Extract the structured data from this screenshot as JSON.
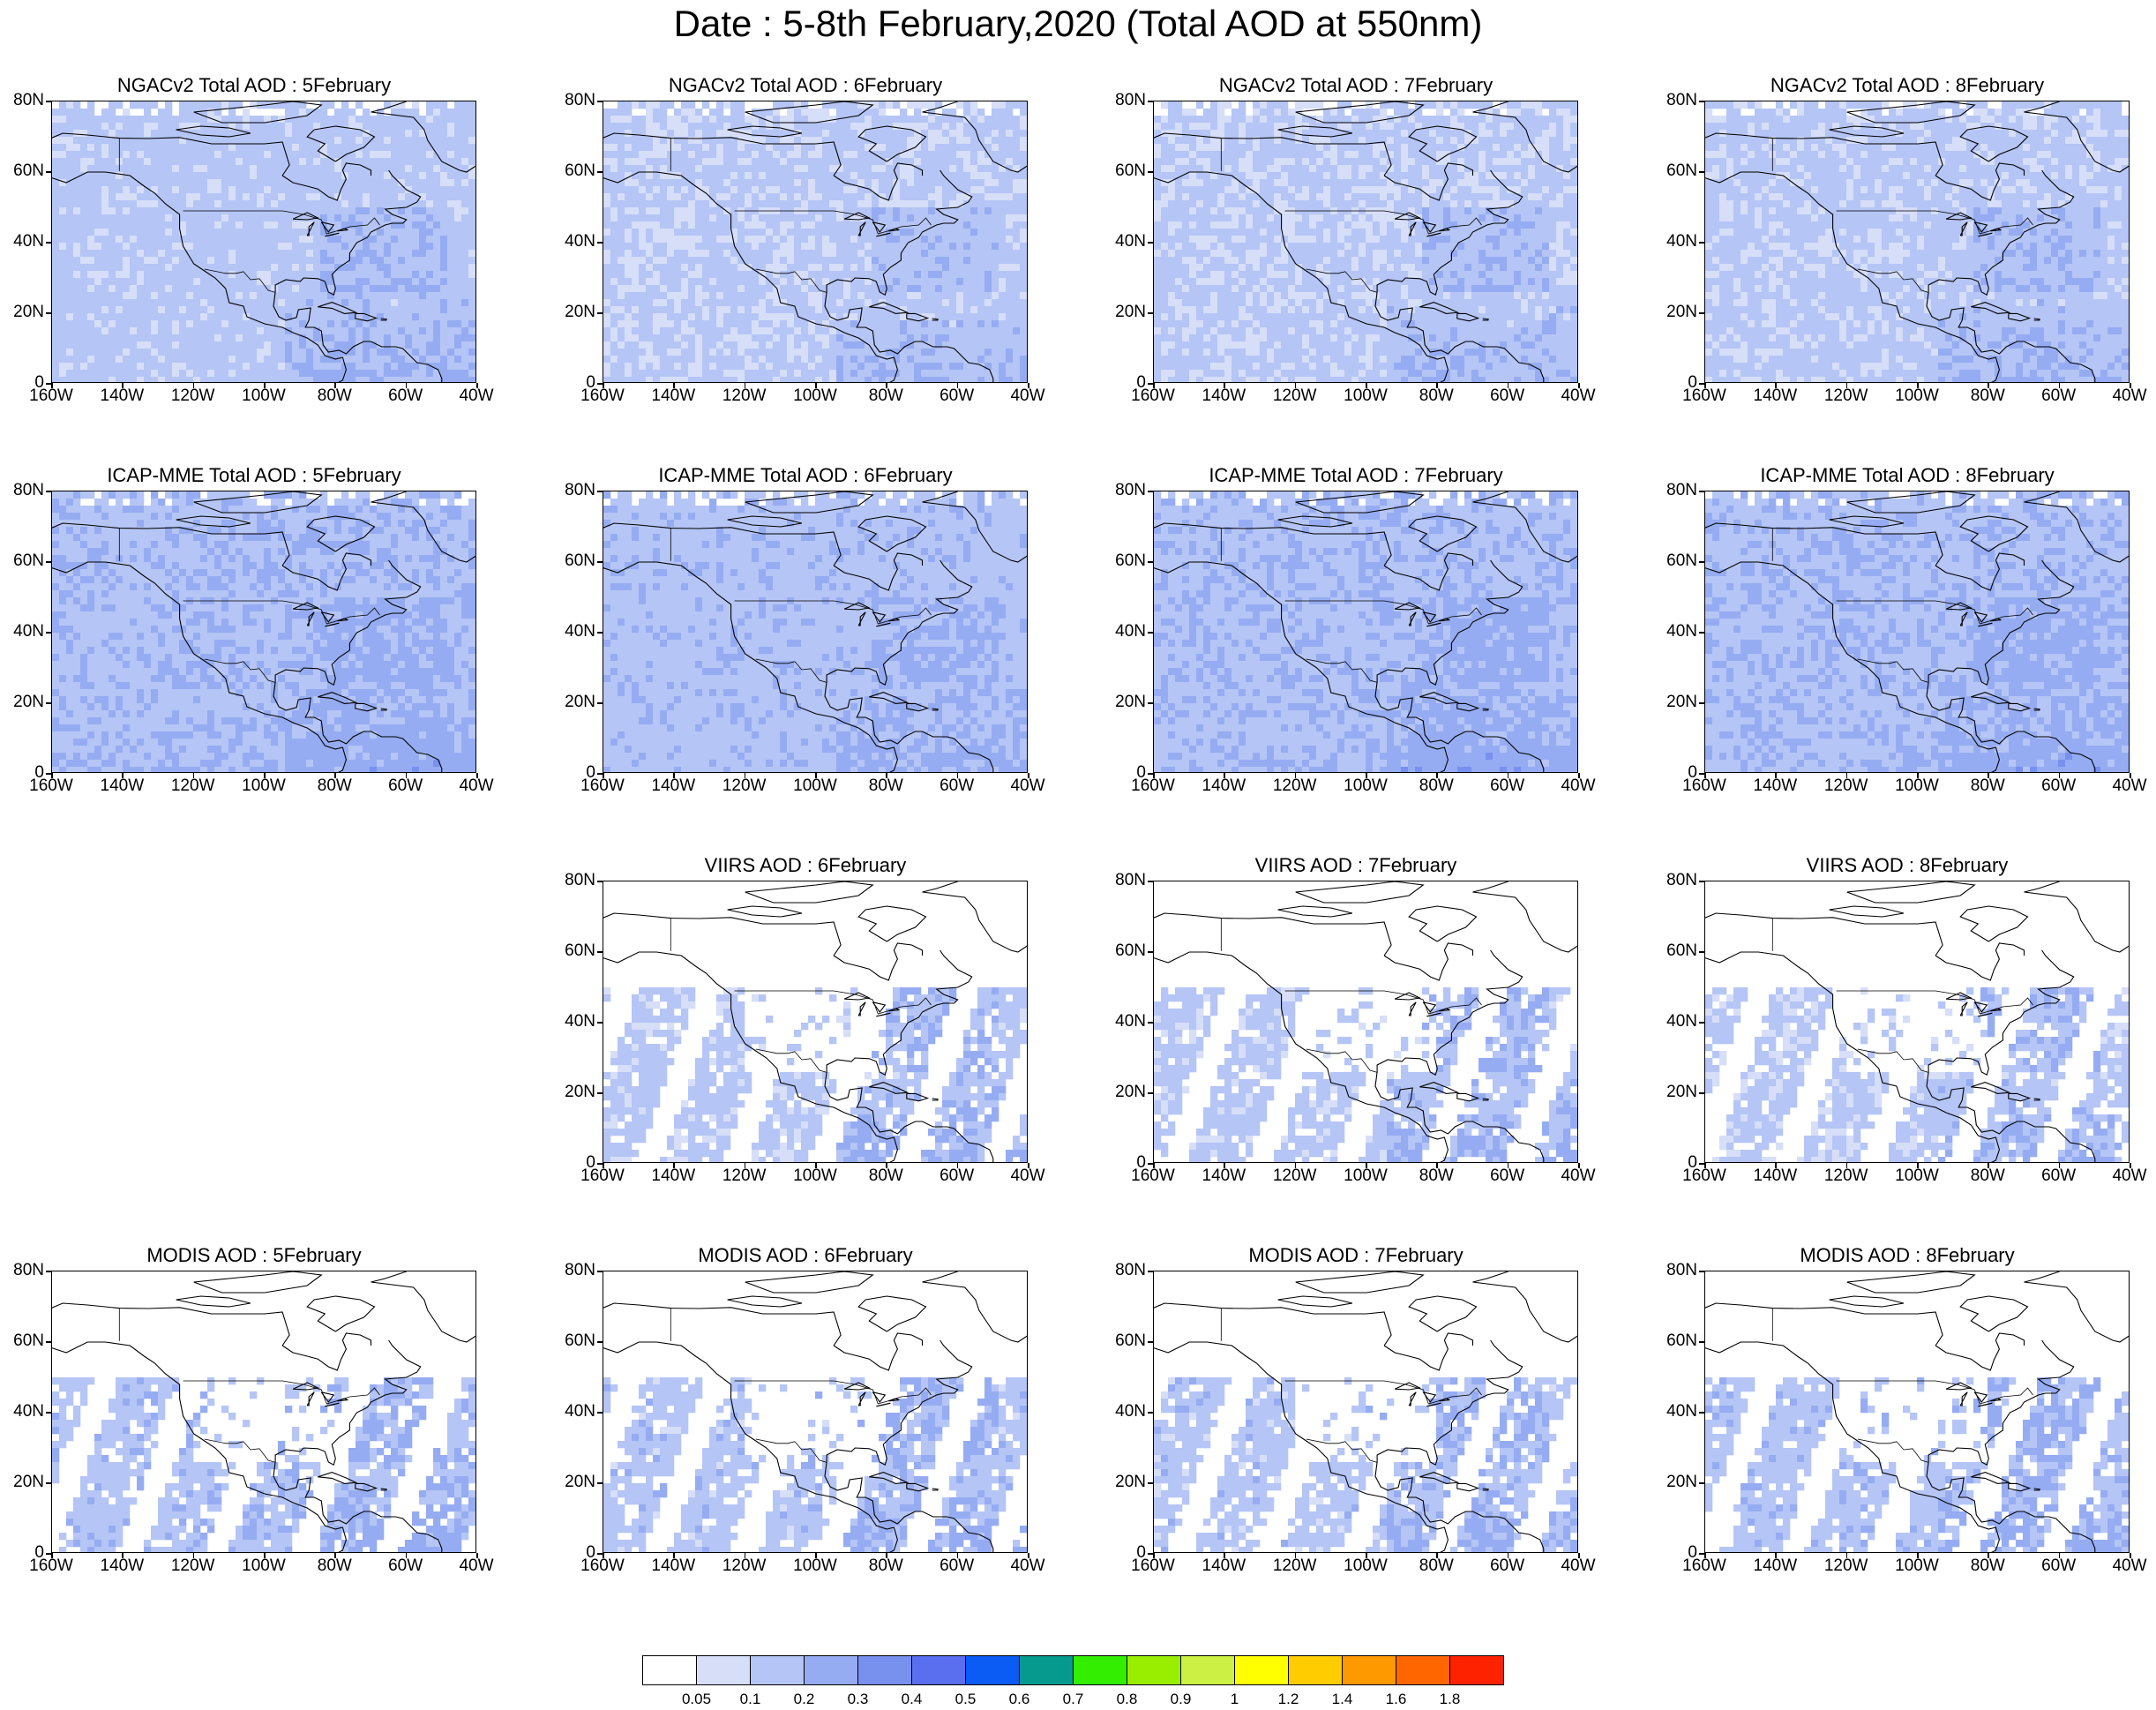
{
  "title": "Date : 5-8th February,2020 (Total AOD at 550nm)",
  "y_ticks": [
    "80N",
    "60N",
    "40N",
    "20N",
    "0"
  ],
  "x_ticks": [
    "160W",
    "140W",
    "120W",
    "100W",
    "80W",
    "60W",
    "40W"
  ],
  "rows": [
    {
      "product": "NGACv2 Total AOD",
      "panels": [
        {
          "title": "NGACv2 Total AOD : 5February",
          "kind": "model",
          "level": 0.14
        },
        {
          "title": "NGACv2 Total AOD : 6February",
          "kind": "model",
          "level": 0.12
        },
        {
          "title": "NGACv2 Total AOD : 7February",
          "kind": "model",
          "level": 0.12
        },
        {
          "title": "NGACv2 Total AOD : 8February",
          "kind": "model",
          "level": 0.13
        }
      ]
    },
    {
      "product": "ICAP-MME Total AOD",
      "panels": [
        {
          "title": "ICAP-MME Total AOD : 5February",
          "kind": "model",
          "level": 0.18
        },
        {
          "title": "ICAP-MME Total AOD : 6February",
          "kind": "model",
          "level": 0.16
        },
        {
          "title": "ICAP-MME Total AOD : 7February",
          "kind": "model",
          "level": 0.18
        },
        {
          "title": "ICAP-MME Total AOD : 8February",
          "kind": "model",
          "level": 0.18
        }
      ]
    },
    {
      "product": "VIIRS AOD",
      "panels": [
        null,
        {
          "title": "VIIRS AOD : 6February",
          "kind": "satellite",
          "level": 0.14
        },
        {
          "title": "VIIRS AOD : 7February",
          "kind": "satellite",
          "level": 0.14
        },
        {
          "title": "VIIRS AOD : 8February",
          "kind": "satellite",
          "level": 0.13
        }
      ]
    },
    {
      "product": "MODIS AOD",
      "panels": [
        {
          "title": "MODIS AOD : 5February",
          "kind": "satellite",
          "level": 0.16
        },
        {
          "title": "MODIS AOD : 6February",
          "kind": "satellite",
          "level": 0.15
        },
        {
          "title": "MODIS AOD : 7February",
          "kind": "satellite",
          "level": 0.15
        },
        {
          "title": "MODIS AOD : 8February",
          "kind": "satellite",
          "level": 0.16
        }
      ]
    }
  ],
  "colorbar": {
    "levels": [
      "0.05",
      "0.1",
      "0.2",
      "0.3",
      "0.4",
      "0.5",
      "0.6",
      "0.7",
      "0.8",
      "0.9",
      "1",
      "1.2",
      "1.4",
      "1.6",
      "1.8"
    ],
    "colors": [
      "#ffffff",
      "#d6def8",
      "#b5c5f5",
      "#96acf2",
      "#7890ee",
      "#5a6ef0",
      "#0a5cf5",
      "#069a8e",
      "#33ee00",
      "#99ee00",
      "#ccf044",
      "#ffff00",
      "#ffcc00",
      "#ff9900",
      "#ff6600",
      "#ff2200"
    ]
  }
}
